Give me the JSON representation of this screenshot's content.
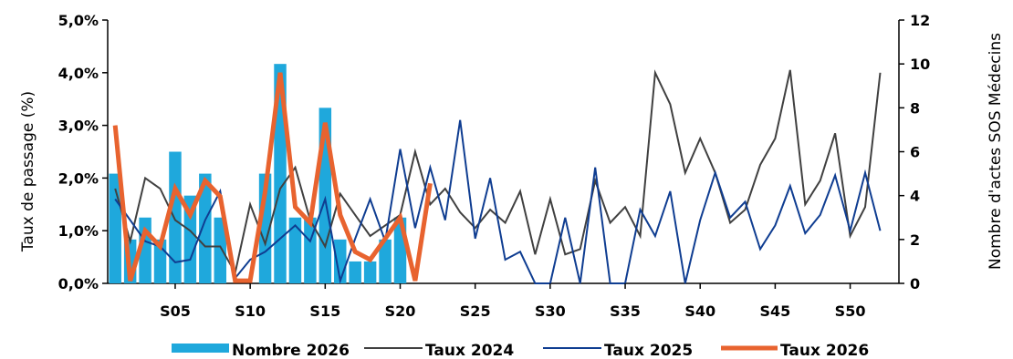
{
  "chart_data": {
    "type": "bar+line",
    "ylabel_left": "Taux de passage (%)",
    "ylabel_right": "Nombre d'actes SOS Médecins",
    "y_left_ticks": [
      "0,0%",
      "1,0%",
      "2,0%",
      "3,0%",
      "4,0%",
      "5,0%"
    ],
    "y_left_range": [
      0,
      5
    ],
    "y_right_ticks": [
      "0",
      "2",
      "4",
      "6",
      "8",
      "10",
      "12"
    ],
    "y_right_range": [
      0,
      12
    ],
    "x_weeks": [
      1,
      2,
      3,
      4,
      5,
      6,
      7,
      8,
      9,
      10,
      11,
      12,
      13,
      14,
      15,
      16,
      17,
      18,
      19,
      20,
      21,
      22,
      23,
      24,
      25,
      26,
      27,
      28,
      29,
      30,
      31,
      32,
      33,
      34,
      35,
      36,
      37,
      38,
      39,
      40,
      41,
      42,
      43,
      44,
      45,
      46,
      47,
      48,
      49,
      50,
      51,
      52
    ],
    "x_tick_labels": [
      {
        "week": 5,
        "label": "S05"
      },
      {
        "week": 10,
        "label": "S10"
      },
      {
        "week": 15,
        "label": "S15"
      },
      {
        "week": 20,
        "label": "S20"
      },
      {
        "week": 25,
        "label": "S25"
      },
      {
        "week": 30,
        "label": "S30"
      },
      {
        "week": 35,
        "label": "S35"
      },
      {
        "week": 40,
        "label": "S40"
      },
      {
        "week": 45,
        "label": "S45"
      },
      {
        "week": 50,
        "label": "S50"
      }
    ],
    "bars": {
      "name": "Nombre 2026",
      "axis": "right",
      "color": "#1fa8dc",
      "weeks": [
        1,
        2,
        3,
        4,
        5,
        6,
        7,
        8,
        9,
        10,
        11,
        12,
        13,
        14,
        15,
        16,
        17,
        18,
        19,
        20,
        21,
        22
      ],
      "values": [
        5,
        2,
        3,
        2,
        6,
        4,
        5,
        3,
        0,
        0,
        5,
        10,
        3,
        3,
        8,
        2,
        1,
        1,
        2,
        3,
        0,
        0
      ]
    },
    "series": [
      {
        "name": "Taux 2024",
        "axis": "left",
        "color": "#404040",
        "width": 2,
        "values": [
          1.8,
          0.8,
          2.0,
          1.8,
          1.2,
          1.0,
          0.7,
          0.7,
          0.2,
          1.5,
          0.75,
          1.8,
          2.2,
          1.2,
          0.7,
          1.7,
          1.3,
          0.9,
          1.1,
          1.3,
          2.5,
          1.5,
          1.8,
          1.35,
          1.05,
          1.4,
          1.15,
          1.75,
          0.55,
          1.6,
          0.55,
          0.65,
          1.95,
          1.15,
          1.45,
          0.9,
          4.0,
          3.4,
          2.1,
          2.75,
          2.1,
          1.15,
          1.4,
          2.25,
          2.75,
          4.05,
          1.5,
          1.95,
          2.85,
          0.9,
          1.45,
          4.0
        ]
      },
      {
        "name": "Taux 2025",
        "axis": "left",
        "color": "#0f3d91",
        "width": 2,
        "values": [
          1.6,
          1.2,
          0.8,
          0.7,
          0.4,
          0.45,
          1.2,
          1.75,
          0.1,
          0.45,
          0.6,
          0.85,
          1.1,
          0.8,
          1.6,
          0.05,
          0.85,
          1.6,
          0.8,
          2.55,
          1.05,
          2.2,
          1.2,
          3.1,
          0.85,
          2.0,
          0.45,
          0.6,
          0.0,
          0.0,
          1.25,
          0.0,
          2.2,
          0.0,
          0.0,
          1.4,
          0.9,
          1.75,
          0.0,
          1.2,
          2.1,
          1.25,
          1.55,
          0.65,
          1.1,
          1.85,
          0.95,
          1.3,
          2.05,
          1.0,
          2.1,
          1.0
        ]
      },
      {
        "name": "Taux 2026",
        "axis": "left",
        "color": "#e8632f",
        "width": 5,
        "values": [
          3.0,
          0.05,
          1.0,
          0.7,
          1.8,
          1.3,
          1.95,
          1.65,
          0.05,
          0.05,
          1.75,
          4.0,
          1.45,
          1.15,
          3.05,
          1.3,
          0.6,
          0.45,
          0.85,
          1.25,
          0.05,
          1.9
        ]
      }
    ],
    "legend_position": "bottom"
  }
}
